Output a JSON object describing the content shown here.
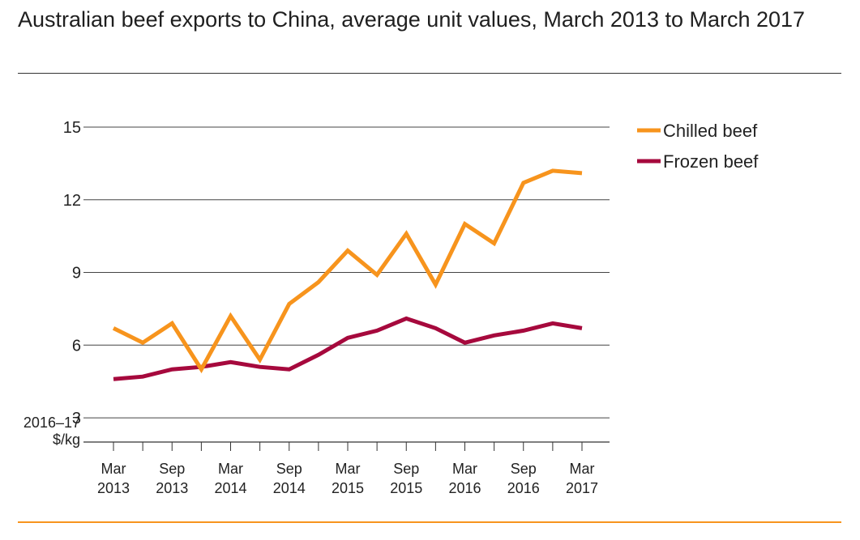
{
  "title": "Australian beef exports to China, average unit values, March 2013 to March 2017",
  "chart_data": {
    "type": "line",
    "title": "Australian beef exports to China, average unit values, March 2013 to March 2017",
    "ylabel": "2016–17 $/kg",
    "xlabel": "",
    "ylim": [
      2,
      15
    ],
    "yticks": [
      3,
      6,
      9,
      12,
      15
    ],
    "grid": true,
    "legend_position": "top-right",
    "x": [
      "Mar 2013",
      "Jun 2013",
      "Sep 2013",
      "Dec 2013",
      "Mar 2014",
      "Jun 2014",
      "Sep 2014",
      "Dec 2014",
      "Mar 2015",
      "Jun 2015",
      "Sep 2015",
      "Dec 2015",
      "Mar 2016",
      "Jun 2016",
      "Sep 2016",
      "Dec 2016",
      "Mar 2017"
    ],
    "x_tick_labels": [
      {
        "line1": "Mar",
        "line2": "2013"
      },
      {
        "line1": "Sep",
        "line2": "2013"
      },
      {
        "line1": "Mar",
        "line2": "2014"
      },
      {
        "line1": "Sep",
        "line2": "2014"
      },
      {
        "line1": "Mar",
        "line2": "2015"
      },
      {
        "line1": "Sep",
        "line2": "2015"
      },
      {
        "line1": "Mar",
        "line2": "2016"
      },
      {
        "line1": "Sep",
        "line2": "2016"
      },
      {
        "line1": "Mar",
        "line2": "2017"
      }
    ],
    "series": [
      {
        "name": "Chilled beef",
        "color": "#f7941d",
        "values": [
          6.7,
          6.1,
          6.9,
          5.0,
          7.2,
          5.4,
          7.7,
          8.6,
          9.9,
          8.9,
          10.6,
          8.5,
          11.0,
          10.2,
          12.7,
          13.2,
          13.1
        ]
      },
      {
        "name": "Frozen beef",
        "color": "#a6093d",
        "values": [
          4.6,
          4.7,
          5.0,
          5.1,
          5.3,
          5.1,
          5.0,
          5.6,
          6.3,
          6.6,
          7.1,
          6.7,
          6.1,
          6.4,
          6.6,
          6.9,
          6.7
        ]
      }
    ]
  }
}
